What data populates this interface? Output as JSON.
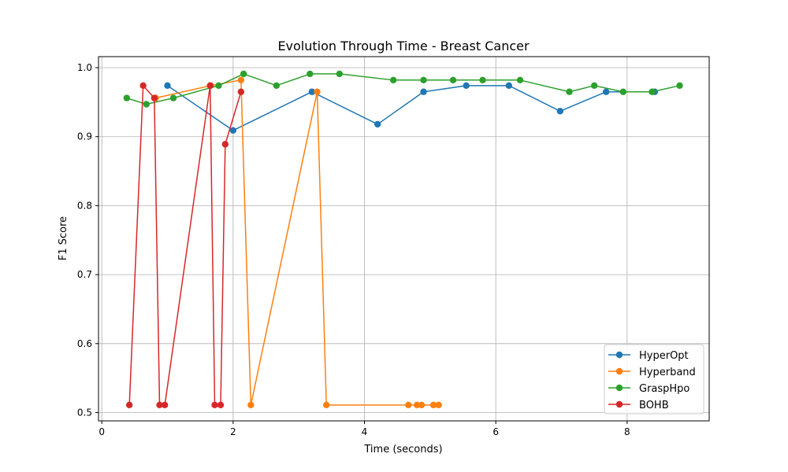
{
  "chart_data": {
    "type": "line",
    "title": "Evolution Through Time - Breast Cancer",
    "xlabel": "Time (seconds)",
    "ylabel": "F1 Score",
    "xlim": [
      -0.05,
      9.25
    ],
    "ylim": [
      0.488,
      1.016
    ],
    "xticks": [
      0,
      2,
      4,
      6,
      8
    ],
    "xtick_labels": [
      "0",
      "2",
      "4",
      "6",
      "8"
    ],
    "yticks": [
      0.5,
      0.6,
      0.7,
      0.8,
      0.9,
      1.0
    ],
    "ytick_labels": [
      "0.5",
      "0.6",
      "0.7",
      "0.8",
      "0.9",
      "1.0"
    ],
    "grid": true,
    "legend_position": "lower-right",
    "series": [
      {
        "name": "HyperOpt",
        "color": "#1f77b4",
        "x": [
          1.0,
          2.0,
          3.2,
          4.2,
          4.9,
          5.55,
          6.2,
          6.98,
          7.68,
          8.42
        ],
        "y": [
          0.974,
          0.909,
          0.965,
          0.918,
          0.965,
          0.974,
          0.974,
          0.937,
          0.965,
          0.965
        ]
      },
      {
        "name": "Hyperband",
        "color": "#ff7f0e",
        "x": [
          0.82,
          1.66,
          2.12,
          2.27,
          3.28,
          3.42,
          4.67,
          4.8,
          4.87,
          5.05,
          5.13
        ],
        "y": [
          0.956,
          0.974,
          0.982,
          0.511,
          0.965,
          0.511,
          0.511,
          0.511,
          0.511,
          0.511,
          0.511
        ]
      },
      {
        "name": "GraspHpo",
        "color": "#2ca02c",
        "x": [
          0.38,
          0.68,
          1.09,
          1.78,
          2.16,
          2.66,
          3.17,
          3.62,
          4.44,
          4.9,
          5.35,
          5.8,
          6.37,
          7.12,
          7.5,
          7.94,
          8.38,
          8.8
        ],
        "y": [
          0.956,
          0.947,
          0.956,
          0.974,
          0.991,
          0.974,
          0.991,
          0.991,
          0.982,
          0.982,
          0.982,
          0.982,
          0.982,
          0.965,
          0.974,
          0.965,
          0.965,
          0.974
        ]
      },
      {
        "name": "BOHB",
        "color": "#d62728",
        "x": [
          0.42,
          0.63,
          0.8,
          0.88,
          0.96,
          1.65,
          1.72,
          1.81,
          1.88,
          2.12
        ],
        "y": [
          0.511,
          0.974,
          0.956,
          0.511,
          0.511,
          0.974,
          0.511,
          0.511,
          0.889,
          0.965
        ]
      }
    ]
  }
}
